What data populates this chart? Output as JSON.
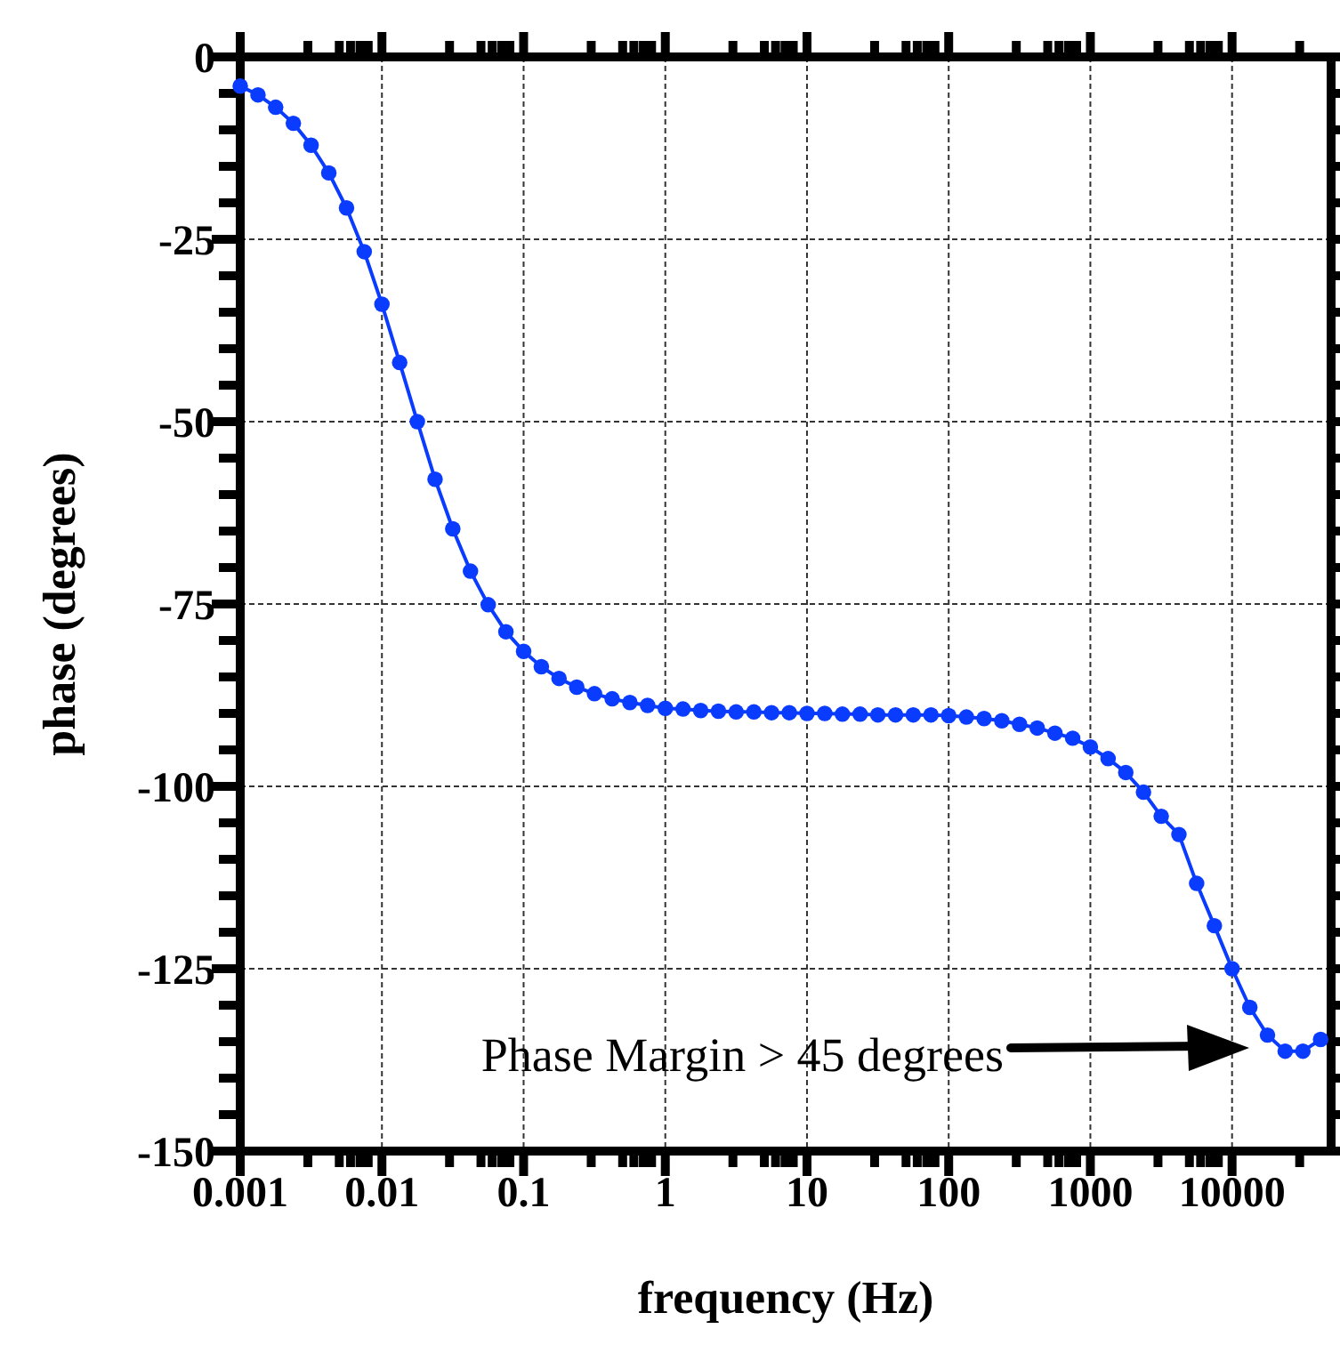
{
  "chart_data": {
    "type": "line",
    "xlabel": "frequency (Hz)",
    "ylabel": "phase (degrees)",
    "log": "x",
    "xlim": [
      0.001,
      50000
    ],
    "xticks": [
      0.001,
      {
        "value": 0.003,
        "label": null
      },
      {
        "value": 0.005,
        "label": null
      },
      {
        "value": 0.006,
        "label": null
      },
      {
        "value": 0.007,
        "label": null
      },
      {
        "value": 0.008,
        "label": null
      },
      0.01,
      {
        "value": 0.03,
        "label": null
      },
      {
        "value": 0.05,
        "label": null
      },
      {
        "value": 0.06,
        "label": null
      },
      {
        "value": 0.07,
        "label": null
      },
      {
        "value": 0.08,
        "label": null
      },
      0.1,
      {
        "value": 0.3,
        "label": null
      },
      {
        "value": 0.5,
        "label": null
      },
      {
        "value": 0.6,
        "label": null
      },
      {
        "value": 0.7,
        "label": null
      },
      {
        "value": 0.8,
        "label": null
      },
      1,
      {
        "value": 3,
        "label": null
      },
      {
        "value": 5,
        "label": null
      },
      {
        "value": 6,
        "label": null
      },
      {
        "value": 7,
        "label": null
      },
      {
        "value": 8,
        "label": null
      },
      10,
      {
        "value": 30,
        "label": null
      },
      {
        "value": 50,
        "label": null
      },
      {
        "value": 60,
        "label": null
      },
      {
        "value": 70,
        "label": null
      },
      {
        "value": 80,
        "label": null
      },
      100,
      {
        "value": 300,
        "label": null
      },
      {
        "value": 500,
        "label": null
      },
      {
        "value": 600,
        "label": null
      },
      {
        "value": 700,
        "label": null
      },
      {
        "value": 800,
        "label": null
      },
      1000,
      {
        "value": 3000,
        "label": null
      },
      {
        "value": 5000,
        "label": null
      },
      {
        "value": 6000,
        "label": null
      },
      {
        "value": 7000,
        "label": null
      },
      {
        "value": 8000,
        "label": null
      },
      10000,
      {
        "value": 30000,
        "label": null
      }
    ],
    "ylim": [
      -150,
      0
    ],
    "yticks": [
      -150,
      {
        "value": -145,
        "label": null
      },
      {
        "value": -140,
        "label": null
      },
      {
        "value": -135,
        "label": null
      },
      {
        "value": -130,
        "label": null
      },
      -125,
      {
        "value": -120,
        "label": null
      },
      {
        "value": -115,
        "label": null
      },
      {
        "value": -110,
        "label": null
      },
      {
        "value": -105,
        "label": null
      },
      -100,
      {
        "value": -95,
        "label": null
      },
      {
        "value": -90,
        "label": null
      },
      {
        "value": -85,
        "label": null
      },
      {
        "value": -80,
        "label": null
      },
      -75,
      {
        "value": -70,
        "label": null
      },
      {
        "value": -65,
        "label": null
      },
      {
        "value": -60,
        "label": null
      },
      {
        "value": -55,
        "label": null
      },
      -50,
      {
        "value": -45,
        "label": null
      },
      {
        "value": -40,
        "label": null
      },
      {
        "value": -35,
        "label": null
      },
      {
        "value": -30,
        "label": null
      },
      -25,
      {
        "value": -20,
        "label": null
      },
      {
        "value": -15,
        "label": null
      },
      {
        "value": -10,
        "label": null
      },
      {
        "value": -5,
        "label": null
      },
      0
    ],
    "grid": true,
    "marker": "circle",
    "line_style": "solid",
    "x": [
      0.001,
      0.001334,
      0.001778,
      0.002371,
      0.003162,
      0.004217,
      0.005623,
      0.007499,
      0.01,
      0.01334,
      0.01778,
      0.02371,
      0.03162,
      0.04217,
      0.05623,
      0.07499,
      0.1,
      0.1334,
      0.1778,
      0.2371,
      0.3162,
      0.4217,
      0.5623,
      0.7499,
      1,
      1.334,
      1.778,
      2.371,
      3.162,
      4.217,
      5.623,
      7.499,
      10,
      13.34,
      17.78,
      23.71,
      31.62,
      42.17,
      56.23,
      74.99,
      100,
      133.4,
      177.8,
      237.1,
      316.2,
      421.7,
      562.3,
      749.9,
      1000,
      1334,
      1778,
      2371,
      3162,
      4217,
      5623,
      7499,
      10000,
      13340,
      17780,
      23710,
      31620,
      42170
    ],
    "series": [
      {
        "color": "#0a3cff",
        "values": [
          -4.0,
          -5.2,
          -6.9,
          -9.1,
          -12.1,
          -15.9,
          -20.7,
          -26.7,
          -33.9,
          -41.9,
          -50.0,
          -57.9,
          -64.7,
          -70.5,
          -75.1,
          -78.8,
          -81.5,
          -83.6,
          -85.2,
          -86.4,
          -87.3,
          -88.0,
          -88.5,
          -88.9,
          -89.3,
          -89.4,
          -89.6,
          -89.7,
          -89.8,
          -89.8,
          -89.9,
          -89.9,
          -90.0,
          -90.0,
          -90.1,
          -90.1,
          -90.2,
          -90.2,
          -90.2,
          -90.2,
          -90.3,
          -90.5,
          -90.7,
          -91.0,
          -91.5,
          -92.0,
          -92.7,
          -93.4,
          -94.6,
          -96.2,
          -98.1,
          -100.8,
          -104.1,
          -106.6,
          -113.3,
          -119.1,
          -125.0,
          -130.3,
          -134.1,
          -136.3,
          -136.3,
          -134.7
        ]
      }
    ],
    "annotations": [
      "Phase Margin > 45 degrees"
    ]
  }
}
